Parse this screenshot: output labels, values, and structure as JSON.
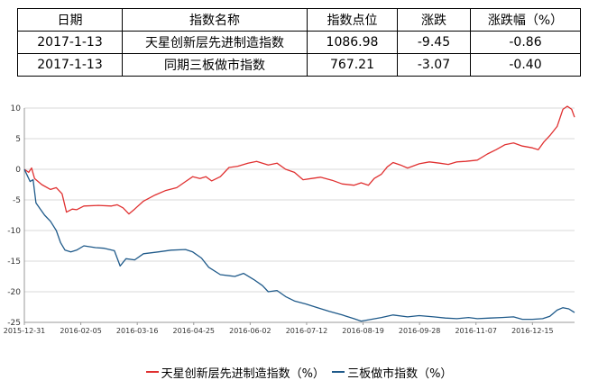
{
  "table": {
    "headers": [
      "日期",
      "指数名称",
      "指数点位",
      "涨跌",
      "涨跌幅（%）"
    ],
    "rows": [
      [
        "2017-1-13",
        "天星创新层先进制造指数",
        "1086.98",
        "-9.45",
        "-0.86"
      ],
      [
        "2017-1-13",
        "同期三板做市指数",
        "767.21",
        "-3.07",
        "-0.40"
      ]
    ]
  },
  "chart_data": {
    "type": "line",
    "x_ticks": [
      "2015-12-31",
      "2016-02-05",
      "2016-03-16",
      "2016-04-25",
      "2016-06-02",
      "2016-07-12",
      "2016-08-19",
      "2016-09-28",
      "2016-11-07",
      "2016-12-15"
    ],
    "ylim": [
      -25,
      10
    ],
    "y_ticks": [
      10,
      5,
      0,
      -5,
      -10,
      -15,
      -20,
      -25
    ],
    "grid": "horizontal",
    "legend_position": "bottom",
    "series": [
      {
        "name": "天星创新层先进制造指数（%）",
        "color": "#e03030",
        "points": [
          [
            "2015-12-31",
            0
          ],
          [
            "2016-01-03",
            -0.5
          ],
          [
            "2016-01-05",
            0.2
          ],
          [
            "2016-01-07",
            -1.5
          ],
          [
            "2016-01-12",
            -2.5
          ],
          [
            "2016-01-18",
            -3.3
          ],
          [
            "2016-01-22",
            -3
          ],
          [
            "2016-01-26",
            -4
          ],
          [
            "2016-01-29",
            -7
          ],
          [
            "2016-02-02",
            -6.5
          ],
          [
            "2016-02-05",
            -6.6
          ],
          [
            "2016-02-10",
            -6
          ],
          [
            "2016-02-20",
            -5.9
          ],
          [
            "2016-02-29",
            -6
          ],
          [
            "2016-03-04",
            -5.8
          ],
          [
            "2016-03-08",
            -6.3
          ],
          [
            "2016-03-12",
            -7.3
          ],
          [
            "2016-03-16",
            -6.5
          ],
          [
            "2016-03-22",
            -5.2
          ],
          [
            "2016-03-30",
            -4.2
          ],
          [
            "2016-04-06",
            -3.5
          ],
          [
            "2016-04-14",
            -3
          ],
          [
            "2016-04-20",
            -2
          ],
          [
            "2016-04-25",
            -1.2
          ],
          [
            "2016-04-30",
            -1.5
          ],
          [
            "2016-05-04",
            -1.2
          ],
          [
            "2016-05-08",
            -1.9
          ],
          [
            "2016-05-14",
            -1.2
          ],
          [
            "2016-05-20",
            0.3
          ],
          [
            "2016-05-26",
            0.5
          ],
          [
            "2016-06-02",
            1
          ],
          [
            "2016-06-08",
            1.3
          ],
          [
            "2016-06-16",
            0.7
          ],
          [
            "2016-06-22",
            1
          ],
          [
            "2016-06-28",
            0
          ],
          [
            "2016-07-04",
            -0.5
          ],
          [
            "2016-07-10",
            -1.7
          ],
          [
            "2016-07-16",
            -1.5
          ],
          [
            "2016-07-22",
            -1.3
          ],
          [
            "2016-07-30",
            -1.8
          ],
          [
            "2016-08-06",
            -2.4
          ],
          [
            "2016-08-14",
            -2.6
          ],
          [
            "2016-08-19",
            -2.2
          ],
          [
            "2016-08-24",
            -2.6
          ],
          [
            "2016-08-28",
            -1.5
          ],
          [
            "2016-09-02",
            -0.8
          ],
          [
            "2016-09-06",
            0.4
          ],
          [
            "2016-09-10",
            1.1
          ],
          [
            "2016-09-15",
            0.7
          ],
          [
            "2016-09-20",
            0.2
          ],
          [
            "2016-09-28",
            0.9
          ],
          [
            "2016-10-05",
            1.2
          ],
          [
            "2016-10-12",
            1
          ],
          [
            "2016-10-18",
            0.8
          ],
          [
            "2016-10-24",
            1.2
          ],
          [
            "2016-10-30",
            1.3
          ],
          [
            "2016-11-07",
            1.5
          ],
          [
            "2016-11-14",
            2.5
          ],
          [
            "2016-11-20",
            3.2
          ],
          [
            "2016-11-26",
            4
          ],
          [
            "2016-12-02",
            4.3
          ],
          [
            "2016-12-08",
            3.8
          ],
          [
            "2016-12-15",
            3.5
          ],
          [
            "2016-12-19",
            3.2
          ],
          [
            "2016-12-23",
            4.5
          ],
          [
            "2016-12-27",
            5.5
          ],
          [
            "2017-01-01",
            7
          ],
          [
            "2017-01-05",
            9.8
          ],
          [
            "2017-01-08",
            10.3
          ],
          [
            "2017-01-11",
            9.8
          ],
          [
            "2017-01-13",
            8.5
          ]
        ]
      },
      {
        "name": "三板做市指数（%）",
        "color": "#1f5a8a",
        "points": [
          [
            "2015-12-31",
            0
          ],
          [
            "2016-01-02",
            -1
          ],
          [
            "2016-01-04",
            -2
          ],
          [
            "2016-01-06",
            -1.7
          ],
          [
            "2016-01-08",
            -5.5
          ],
          [
            "2016-01-11",
            -6.5
          ],
          [
            "2016-01-14",
            -7.5
          ],
          [
            "2016-01-18",
            -8.5
          ],
          [
            "2016-01-22",
            -10
          ],
          [
            "2016-01-25",
            -12
          ],
          [
            "2016-01-28",
            -13.2
          ],
          [
            "2016-02-01",
            -13.5
          ],
          [
            "2016-02-05",
            -13.2
          ],
          [
            "2016-02-10",
            -12.5
          ],
          [
            "2016-02-18",
            -12.8
          ],
          [
            "2016-02-24",
            -12.9
          ],
          [
            "2016-03-02",
            -13.3
          ],
          [
            "2016-03-06",
            -15.8
          ],
          [
            "2016-03-10",
            -14.6
          ],
          [
            "2016-03-16",
            -14.8
          ],
          [
            "2016-03-22",
            -13.8
          ],
          [
            "2016-04-01",
            -13.5
          ],
          [
            "2016-04-10",
            -13.2
          ],
          [
            "2016-04-20",
            -13.1
          ],
          [
            "2016-04-25",
            -13.5
          ],
          [
            "2016-05-01",
            -14.5
          ],
          [
            "2016-05-06",
            -16
          ],
          [
            "2016-05-14",
            -17.2
          ],
          [
            "2016-05-24",
            -17.5
          ],
          [
            "2016-05-30",
            -17
          ],
          [
            "2016-06-06",
            -18
          ],
          [
            "2016-06-12",
            -19
          ],
          [
            "2016-06-16",
            -20
          ],
          [
            "2016-06-22",
            -19.8
          ],
          [
            "2016-06-28",
            -20.8
          ],
          [
            "2016-07-04",
            -21.5
          ],
          [
            "2016-07-12",
            -22
          ],
          [
            "2016-07-20",
            -22.6
          ],
          [
            "2016-07-28",
            -23.2
          ],
          [
            "2016-08-06",
            -23.8
          ],
          [
            "2016-08-14",
            -24.4
          ],
          [
            "2016-08-19",
            -24.8
          ],
          [
            "2016-08-26",
            -24.5
          ],
          [
            "2016-09-02",
            -24.2
          ],
          [
            "2016-09-10",
            -23.8
          ],
          [
            "2016-09-20",
            -24.1
          ],
          [
            "2016-09-28",
            -23.9
          ],
          [
            "2016-10-08",
            -24.1
          ],
          [
            "2016-10-16",
            -24.3
          ],
          [
            "2016-10-24",
            -24.4
          ],
          [
            "2016-11-01",
            -24.2
          ],
          [
            "2016-11-07",
            -24.4
          ],
          [
            "2016-11-16",
            -24.3
          ],
          [
            "2016-11-24",
            -24.2
          ],
          [
            "2016-12-02",
            -24.1
          ],
          [
            "2016-12-08",
            -24.5
          ],
          [
            "2016-12-15",
            -24.5
          ],
          [
            "2016-12-22",
            -24.4
          ],
          [
            "2016-12-27",
            -24
          ],
          [
            "2017-01-01",
            -23
          ],
          [
            "2017-01-05",
            -22.6
          ],
          [
            "2017-01-09",
            -22.8
          ],
          [
            "2017-01-13",
            -23.4
          ]
        ]
      }
    ]
  }
}
